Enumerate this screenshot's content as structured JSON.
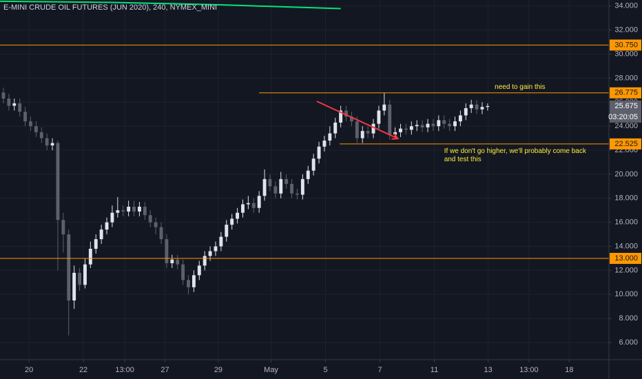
{
  "chart_data": {
    "type": "candlestick",
    "title": "E-MINI CRUDE OIL FUTURES (JUN 2020), 240, NYMEX_MINI",
    "up_color": "#e0e3eb",
    "down_color": "#5d606b",
    "open": [
      26.8,
      26.3,
      25.7,
      25.9,
      25.2,
      24.4,
      24.0,
      23.5,
      23.0,
      22.4,
      22.6,
      16.2,
      15.0,
      9.5,
      11.8,
      10.8,
      12.5,
      13.8,
      14.6,
      15.4,
      16.0,
      16.8,
      17.0,
      16.9,
      17.3,
      16.9,
      17.3,
      16.6,
      16.0,
      15.6,
      14.6,
      12.6,
      12.9,
      12.5,
      11.2,
      10.6,
      11.6,
      12.4,
      13.2,
      13.6,
      14.0,
      14.8,
      15.8,
      16.3,
      16.8,
      17.5,
      17.6,
      17.2,
      18.2,
      19.6,
      19.0,
      18.4,
      19.6,
      19.2,
      18.4,
      18.3,
      19.6,
      20.3,
      21.3,
      22.3,
      22.8,
      23.4,
      24.3,
      25.3,
      24.8,
      24.4,
      23.0,
      23.6,
      23.4,
      24.2,
      25.3,
      25.8,
      23.3,
      23.5,
      23.8,
      23.7,
      24.0,
      24.1,
      23.9,
      24.2,
      24.0,
      24.5,
      24.2,
      24.0,
      24.4,
      24.9,
      25.5,
      25.8,
      25.4,
      25.6
    ],
    "high": [
      27.2,
      26.7,
      26.3,
      26.3,
      25.6,
      24.8,
      24.4,
      23.9,
      23.4,
      23.0,
      22.8,
      16.8,
      15.4,
      12.4,
      12.2,
      13.0,
      14.4,
      15.0,
      15.8,
      16.4,
      17.4,
      18.1,
      17.4,
      17.8,
      17.8,
      17.7,
      17.7,
      17.0,
      16.4,
      16.0,
      15.0,
      13.3,
      13.3,
      12.9,
      11.6,
      12.0,
      12.8,
      13.6,
      14.0,
      14.4,
      15.2,
      16.2,
      16.7,
      17.2,
      17.9,
      18.2,
      18.0,
      18.6,
      20.4,
      20.0,
      19.4,
      20.2,
      20.0,
      19.6,
      18.8,
      20.0,
      20.7,
      21.7,
      22.7,
      23.2,
      24.0,
      24.7,
      25.7,
      25.7,
      25.2,
      24.8,
      24.0,
      24.0,
      24.6,
      25.7,
      26.8,
      26.2,
      23.9,
      24.2,
      24.2,
      24.4,
      24.5,
      24.5,
      24.6,
      24.6,
      24.9,
      24.9,
      24.6,
      24.8,
      25.3,
      25.9,
      26.2,
      26.2,
      26.0,
      25.9
    ],
    "low": [
      25.9,
      25.3,
      25.3,
      24.8,
      24.0,
      23.6,
      23.1,
      22.6,
      22.0,
      22.0,
      12.0,
      13.5,
      6.6,
      8.8,
      10.3,
      10.5,
      12.2,
      13.4,
      14.2,
      15.0,
      15.6,
      16.4,
      16.5,
      16.5,
      16.5,
      16.5,
      16.2,
      15.6,
      15.0,
      14.2,
      12.2,
      12.2,
      12.1,
      10.8,
      10.0,
      10.2,
      11.2,
      12.0,
      12.8,
      13.2,
      13.6,
      14.4,
      15.4,
      15.9,
      16.4,
      17.1,
      16.8,
      16.8,
      17.8,
      18.6,
      18.0,
      18.0,
      18.8,
      18.0,
      17.9,
      17.9,
      19.2,
      19.9,
      20.9,
      21.9,
      22.4,
      23.0,
      23.9,
      24.4,
      24.0,
      22.6,
      22.6,
      23.0,
      23.0,
      23.8,
      24.9,
      22.9,
      22.9,
      23.1,
      23.3,
      23.3,
      23.6,
      23.5,
      23.5,
      23.6,
      23.6,
      23.8,
      23.6,
      23.6,
      24.0,
      24.5,
      25.1,
      25.0,
      25.0,
      25.3
    ],
    "close": [
      26.3,
      25.7,
      25.9,
      25.2,
      24.4,
      24.0,
      23.5,
      23.0,
      22.4,
      22.6,
      16.2,
      15.0,
      9.5,
      11.8,
      10.8,
      12.5,
      13.8,
      14.6,
      15.4,
      16.0,
      16.8,
      17.0,
      16.9,
      17.3,
      16.9,
      17.3,
      16.6,
      16.0,
      15.6,
      14.6,
      12.6,
      12.9,
      12.5,
      11.2,
      10.6,
      11.6,
      12.4,
      13.2,
      13.6,
      14.0,
      14.8,
      15.8,
      16.3,
      16.8,
      17.5,
      17.6,
      17.2,
      18.2,
      19.6,
      19.0,
      18.4,
      19.6,
      19.2,
      18.4,
      18.3,
      19.6,
      20.3,
      21.3,
      22.3,
      22.8,
      23.4,
      24.3,
      25.3,
      24.8,
      24.4,
      23.0,
      23.6,
      23.4,
      24.2,
      25.3,
      25.8,
      23.3,
      23.5,
      23.8,
      23.7,
      24.0,
      24.1,
      23.9,
      24.2,
      24.0,
      24.5,
      24.2,
      24.0,
      24.4,
      24.9,
      25.5,
      25.8,
      25.4,
      25.6,
      25.675
    ],
    "xlim": [
      -0.63,
      111.3
    ],
    "xticks": [
      {
        "value": 4.7,
        "label": "20"
      },
      {
        "value": 14.7,
        "label": "22"
      },
      {
        "value": 22.3,
        "label": "13:00"
      },
      {
        "value": 29.7,
        "label": "27"
      },
      {
        "value": 39.5,
        "label": "29"
      },
      {
        "value": 49.2,
        "label": "May"
      },
      {
        "value": 59.2,
        "label": "5"
      },
      {
        "value": 69.2,
        "label": "7"
      },
      {
        "value": 79.2,
        "label": "11"
      },
      {
        "value": 89.1,
        "label": "13"
      },
      {
        "value": 96.6,
        "label": "13:00"
      },
      {
        "value": 104,
        "label": "18"
      }
    ],
    "ylim": [
      4.57,
      34.5
    ],
    "yticks": [
      {
        "value": 6,
        "label": "6.000"
      },
      {
        "value": 8,
        "label": "8.000"
      },
      {
        "value": 10,
        "label": "10.000"
      },
      {
        "value": 12,
        "label": "12.000"
      },
      {
        "value": 14,
        "label": "14.000"
      },
      {
        "value": 16,
        "label": "16.000"
      },
      {
        "value": 18,
        "label": "18.000"
      },
      {
        "value": 20,
        "label": "20.000"
      },
      {
        "value": 22,
        "label": "22.000"
      },
      {
        "value": 24,
        "label": "24.000"
      },
      {
        "value": 26,
        "label": "26.000"
      },
      {
        "value": 28,
        "label": "28.000"
      },
      {
        "value": 30,
        "label": "30.000"
      },
      {
        "value": 32,
        "label": "32.000"
      },
      {
        "value": 34,
        "label": "34.000"
      }
    ],
    "grid": true,
    "hlines": [
      {
        "value": 30.75,
        "label": "30.750",
        "start": -0.63
      },
      {
        "value": 26.775,
        "label": "26.775",
        "start": 47
      },
      {
        "value": 22.525,
        "label": "22.525",
        "start": 61.8
      },
      {
        "value": 13,
        "label": "13.000",
        "start": -0.63
      }
    ],
    "hline_color": "#ff9800",
    "last_price": {
      "value": 25.675,
      "label": "25.675",
      "countdown": "03:20:05"
    },
    "moving_average": {
      "color": "#00e676",
      "x": [
        -0.63,
        20,
        40,
        62
      ],
      "values": [
        34.39,
        34.3,
        34.1,
        33.78
      ]
    },
    "arrow": {
      "color": "#f23645",
      "x": [
        57.6,
        72.5
      ],
      "values": [
        26.07,
        22.97
      ]
    },
    "annotations": [
      {
        "text": "need to gain this",
        "x": 90.3,
        "y": 27.24
      },
      {
        "text": "If we don't go higher, we'll probably come back and test this",
        "x": 81,
        "y": 21.86
      }
    ],
    "annotation_color": "#ffeb3b"
  }
}
